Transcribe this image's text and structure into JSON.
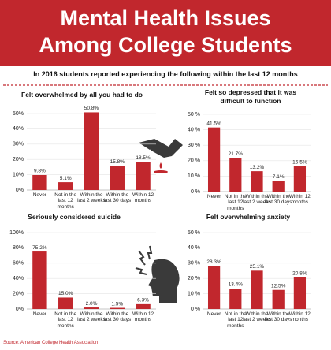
{
  "header": {
    "title": [
      "Mental Health Issues",
      "Among College Students"
    ],
    "subtitle": "In 2016 students reported experiencing the following within the last 12 months"
  },
  "chart_data": [
    {
      "type": "bar",
      "title": "Felt overwhelmed by all you had to do",
      "categories": [
        "Never",
        "Not in the last 12 months",
        "Within the last 2 weeks",
        "Within the last 30 days",
        "Within 12 months"
      ],
      "values": [
        9.8,
        5.1,
        50.8,
        15.8,
        18.5
      ],
      "value_labels": [
        "9.8%",
        "5.1%",
        "50.8%",
        "15.8%",
        "18.5%"
      ],
      "color": "#c1272d",
      "ylim": [
        0,
        50
      ],
      "grid": true,
      "yticks": [
        {
          "value": 0,
          "label": "0%"
        },
        {
          "value": 10,
          "label": "10%"
        },
        {
          "value": 20,
          "label": "20%"
        },
        {
          "value": 30,
          "label": "30%"
        },
        {
          "value": 40,
          "label": "40%"
        },
        {
          "value": 50,
          "label": "50%"
        }
      ]
    },
    {
      "type": "bar",
      "title": "Felt so depressed that it was difficult to function",
      "categories": [
        "Never",
        "Not in the last 12 months",
        "Within the last 2 weeks",
        "Within the last 30 days",
        "Within 12 months"
      ],
      "values": [
        41.5,
        21.7,
        13.2,
        7.1,
        16.5
      ],
      "value_labels": [
        "41.5%",
        "21.7%",
        "13.2%",
        "7.1%",
        "16.5%"
      ],
      "color": "#c1272d",
      "ylim": [
        0,
        50
      ],
      "grid": true,
      "yticks": [
        {
          "value": 0,
          "label": "0 %"
        },
        {
          "value": 10,
          "label": "10 %"
        },
        {
          "value": 20,
          "label": "20 %"
        },
        {
          "value": 30,
          "label": "30 %"
        },
        {
          "value": 40,
          "label": "40 %"
        },
        {
          "value": 50,
          "label": "50 %"
        }
      ]
    },
    {
      "type": "bar",
      "title": "Seriously considered suicide",
      "categories": [
        "Never",
        "Not in the last 12 months",
        "Within the last 2 weeks",
        "Within the last 30 days",
        "Within 12 months"
      ],
      "values": [
        75.2,
        15.0,
        2.0,
        1.5,
        6.3
      ],
      "value_labels": [
        "75.2%",
        "15.0%",
        "2.0%",
        "1.5%",
        "6.3%"
      ],
      "color": "#c1272d",
      "ylim": [
        0,
        100
      ],
      "grid": true,
      "yticks": [
        {
          "value": 0,
          "label": "0%"
        },
        {
          "value": 20,
          "label": "20%"
        },
        {
          "value": 40,
          "label": "40%"
        },
        {
          "value": 60,
          "label": "60%"
        },
        {
          "value": 80,
          "label": "80%"
        },
        {
          "value": 100,
          "label": "100%"
        }
      ]
    },
    {
      "type": "bar",
      "title": "Felt overwhelming anxiety",
      "categories": [
        "Never",
        "Not in the last 12 months",
        "Within the last 2 weeks",
        "Within the last 30 days",
        "Within 12 months"
      ],
      "values": [
        28.3,
        13.4,
        25.1,
        12.5,
        20.8
      ],
      "value_labels": [
        "28.3%",
        "13.4%",
        "25.1%",
        "12.5%",
        "20.8%"
      ],
      "color": "#c1272d",
      "ylim": [
        0,
        50
      ],
      "grid": true,
      "yticks": [
        {
          "value": 0,
          "label": "0 %"
        },
        {
          "value": 10,
          "label": "10 %"
        },
        {
          "value": 20,
          "label": "20 %"
        },
        {
          "value": 30,
          "label": "30 %"
        },
        {
          "value": 40,
          "label": "40 %"
        },
        {
          "value": 50,
          "label": "50 %"
        }
      ]
    }
  ],
  "source": "Source: American College Health Association"
}
